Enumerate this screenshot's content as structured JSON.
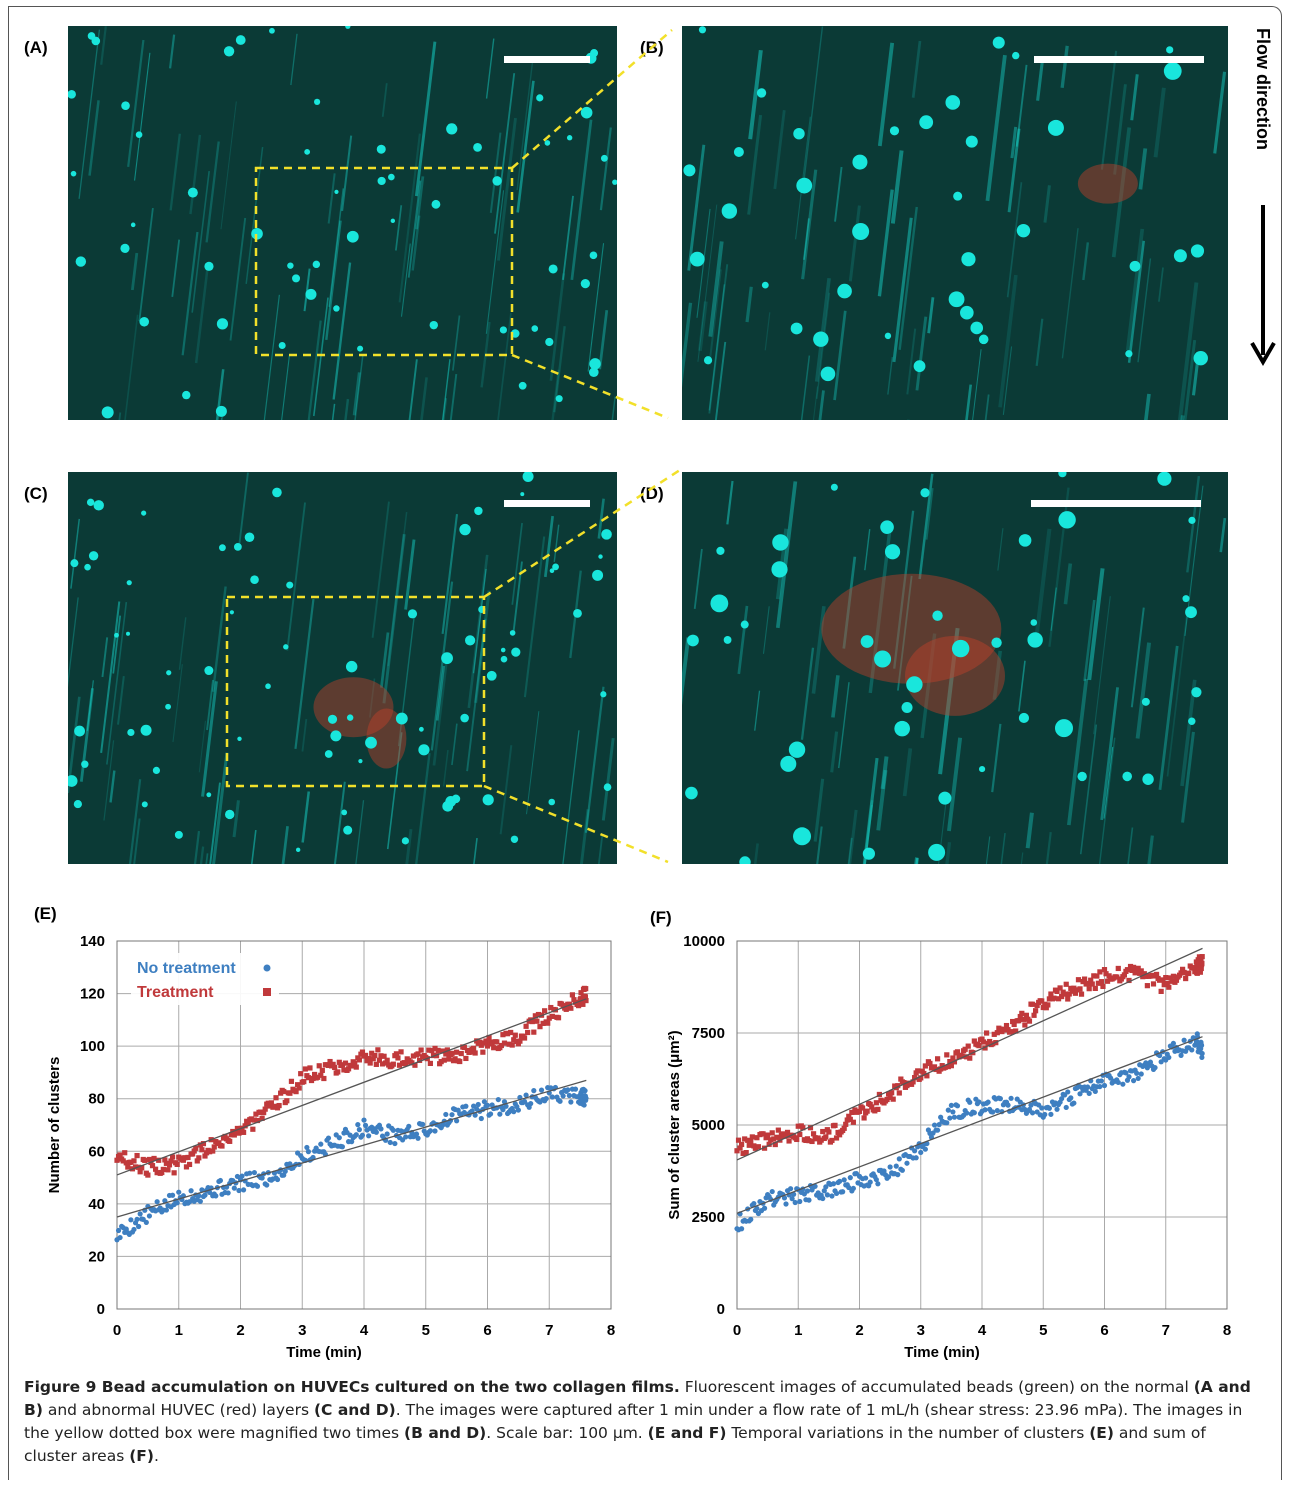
{
  "panels": {
    "a_label": "(A)",
    "b_label": "(B)",
    "c_label": "(C)",
    "d_label": "(D)",
    "e_label": "(E)",
    "f_label": "(F)"
  },
  "flow_label": "Flow direction",
  "colors": {
    "bead": "#19e6dc",
    "background": "#0b3a36",
    "cell": "#c0402a",
    "box": "#f2e02a"
  },
  "chart_data": [
    {
      "type": "scatter",
      "xlabel": "Time (min)",
      "ylabel": "Number of clusters",
      "xlim": [
        0,
        8
      ],
      "ylim": [
        0,
        140
      ],
      "xticks": [
        "0",
        "1",
        "2",
        "3",
        "4",
        "5",
        "6",
        "7",
        "8"
      ],
      "yticks": [
        "0",
        "20",
        "40",
        "60",
        "80",
        "100",
        "120",
        "140"
      ],
      "legend_position": "top-left",
      "grid": true,
      "series": [
        {
          "name": "No treatment",
          "color": "#3e7fc1",
          "marker": "circle",
          "trend": [
            [
              0,
              35
            ],
            [
              7.6,
              87
            ]
          ],
          "x": [
            0,
            0.5,
            1,
            1.5,
            2,
            2.5,
            3,
            3.5,
            4,
            4.5,
            5,
            5.5,
            6,
            6.5,
            7,
            7.5,
            7.6
          ],
          "y": [
            28,
            36,
            42,
            45,
            48,
            50,
            58,
            63,
            69,
            66,
            68,
            74,
            76,
            78,
            82,
            81,
            80
          ]
        },
        {
          "name": "Treatment",
          "color": "#c0393b",
          "marker": "square",
          "trend": [
            [
              0,
              51
            ],
            [
              7.6,
              118
            ]
          ],
          "x": [
            0,
            0.5,
            1,
            1.5,
            2,
            2.5,
            3,
            3.5,
            4,
            4.5,
            5,
            5.5,
            6,
            6.5,
            7,
            7.5,
            7.6
          ],
          "y": [
            58,
            54,
            55,
            62,
            68,
            76,
            88,
            92,
            96,
            95,
            96,
            97,
            100,
            104,
            112,
            118,
            120
          ]
        }
      ]
    },
    {
      "type": "scatter",
      "xlabel": "Time (min)",
      "ylabel": "Sum of cluster areas (μm²)",
      "xlim": [
        0,
        8
      ],
      "ylim": [
        0,
        10000
      ],
      "xticks": [
        "0",
        "1",
        "2",
        "3",
        "4",
        "5",
        "6",
        "7",
        "8"
      ],
      "yticks": [
        "0",
        "2500",
        "5000",
        "7500",
        "10000"
      ],
      "grid": true,
      "series": [
        {
          "name": "No treatment",
          "color": "#3e7fc1",
          "marker": "circle",
          "trend": [
            [
              0,
              2600
            ],
            [
              7.6,
              7400
            ]
          ],
          "x": [
            0,
            0.5,
            1,
            1.5,
            2,
            2.5,
            3,
            3.5,
            4,
            4.5,
            5,
            5.5,
            6,
            6.5,
            7,
            7.5,
            7.6
          ],
          "y": [
            2300,
            3000,
            3100,
            3200,
            3500,
            3700,
            4400,
            5400,
            5500,
            5600,
            5400,
            5800,
            6200,
            6400,
            6900,
            7300,
            7000
          ]
        },
        {
          "name": "Treatment",
          "color": "#c0393b",
          "marker": "square",
          "trend": [
            [
              0,
              4050
            ],
            [
              7.6,
              9800
            ]
          ],
          "x": [
            0,
            0.5,
            1,
            1.5,
            2,
            2.5,
            3,
            3.5,
            4,
            4.5,
            5,
            5.5,
            6,
            6.5,
            7,
            7.5,
            7.6
          ],
          "y": [
            4400,
            4600,
            4800,
            4700,
            5300,
            5800,
            6500,
            6800,
            7200,
            7700,
            8300,
            8700,
            9000,
            9100,
            8800,
            9300,
            9400
          ]
        }
      ]
    }
  ],
  "caption": {
    "title": "Figure 9 Bead accumulation on HUVECs cultured on the two collagen films.",
    "t1": " Fluorescent images of accumulated beads (green) on the normal ",
    "b1": "(A and B)",
    "t2": " and abnormal HUVEC (red) layers ",
    "b2": "(C and D)",
    "t3": ". The images were captured after 1 min under a flow rate of 1 mL/h (shear stress: 23.96 mPa). The images in the yellow dotted box were magnified two times ",
    "b3": "(B and D)",
    "t4": ". Scale bar: 100 μm. ",
    "b4": "(E and F)",
    "t5": " Temporal variations in the number of clusters ",
    "b5": "(E)",
    "t6": " and sum of cluster areas ",
    "b6": "(F)",
    "t7": "."
  }
}
